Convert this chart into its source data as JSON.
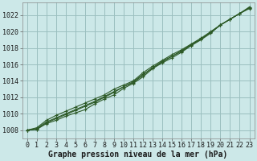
{
  "background_color": "#cce8e8",
  "grid_color": "#9bbfbf",
  "line_color": "#2d5a27",
  "xlabel": "Graphe pression niveau de la mer (hPa)",
  "xlabel_fontsize": 7,
  "tick_fontsize": 6,
  "ylim": [
    1007.0,
    1023.5
  ],
  "xlim": [
    -0.5,
    23.5
  ],
  "yticks": [
    1008,
    1010,
    1012,
    1014,
    1016,
    1018,
    1020,
    1022
  ],
  "xticks": [
    0,
    1,
    2,
    3,
    4,
    5,
    6,
    7,
    8,
    9,
    10,
    11,
    12,
    13,
    14,
    15,
    16,
    17,
    18,
    19,
    20,
    21,
    22,
    23
  ],
  "series": [
    [
      1008.0,
      1008.1,
      1008.8,
      1009.2,
      1009.7,
      1010.1,
      1010.5,
      1011.2,
      1011.8,
      1012.3,
      1013.1,
      1013.7,
      1014.5,
      1015.5,
      1016.2,
      1016.8,
      1017.5,
      1018.3,
      1019.0,
      1019.8,
      1020.8,
      1021.5,
      1022.2,
      1023.0
    ],
    [
      1008.0,
      1008.3,
      1009.2,
      1009.8,
      1010.3,
      1010.8,
      1011.3,
      1011.8,
      1012.3,
      1013.0,
      1013.5,
      1014.0,
      1015.0,
      1015.8,
      1016.5,
      1017.2,
      1017.8,
      1018.5,
      1019.2,
      1020.0,
      1020.8,
      1021.5,
      1022.2,
      1022.8
    ],
    [
      1008.0,
      1008.1,
      1008.9,
      1009.4,
      1009.9,
      1010.4,
      1010.9,
      1011.4,
      1012.0,
      1012.6,
      1013.3,
      1013.8,
      1014.7,
      1015.6,
      1016.3,
      1017.0,
      1017.6,
      1018.4,
      1019.1,
      1019.9,
      1020.8,
      1021.5,
      1022.2,
      1022.9
    ],
    [
      1008.0,
      1008.2,
      1009.0,
      1009.5,
      1010.0,
      1010.5,
      1011.0,
      1011.5,
      1012.1,
      1012.7,
      1013.3,
      1013.9,
      1014.8,
      1015.6,
      1016.4,
      1017.0,
      1017.7,
      1018.4,
      1019.1,
      1019.9,
      1020.8,
      1021.5,
      1022.2,
      1022.9
    ]
  ]
}
